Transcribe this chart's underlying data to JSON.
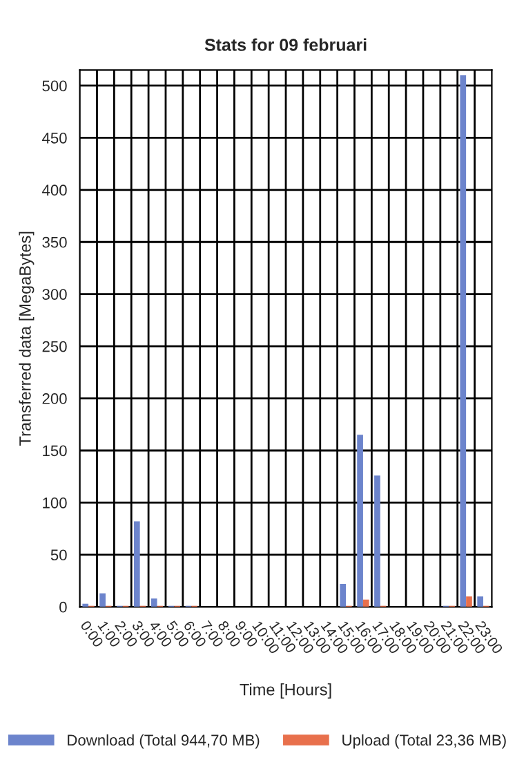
{
  "chart_data": {
    "type": "bar",
    "title": "Stats for 09 februari",
    "xlabel": "Time [Hours]",
    "ylabel": "Transferred data [MegaBytes]",
    "categories": [
      "0:00",
      "1:00",
      "2:00",
      "3:00",
      "4:00",
      "5:00",
      "6:00",
      "7:00",
      "8:00",
      "9:00",
      "10:00",
      "11:00",
      "12:00",
      "13:00",
      "14:00",
      "15:00",
      "16:00",
      "17:00",
      "18:00",
      "19:00",
      "20:00",
      "21:00",
      "22:00",
      "23:00"
    ],
    "series": [
      {
        "name": "Download (Total 944,70 MB)",
        "color": "#6c84cc",
        "values": [
          3,
          13,
          1,
          82,
          8,
          1,
          1,
          null,
          null,
          null,
          null,
          null,
          null,
          null,
          null,
          22,
          165,
          126,
          null,
          null,
          null,
          1,
          510,
          10
        ]
      },
      {
        "name": "Upload (Total 23,36 MB)",
        "color": "#e8704c",
        "values": [
          1,
          1,
          1,
          1,
          1,
          1,
          1,
          null,
          null,
          null,
          null,
          null,
          null,
          null,
          null,
          1,
          7,
          1,
          null,
          null,
          null,
          1,
          10,
          1
        ]
      }
    ],
    "ylim": [
      0,
      515
    ],
    "yticks": [
      0,
      50,
      100,
      150,
      200,
      250,
      300,
      350,
      400,
      450,
      500
    ],
    "grid": true,
    "legend": "bottom"
  }
}
